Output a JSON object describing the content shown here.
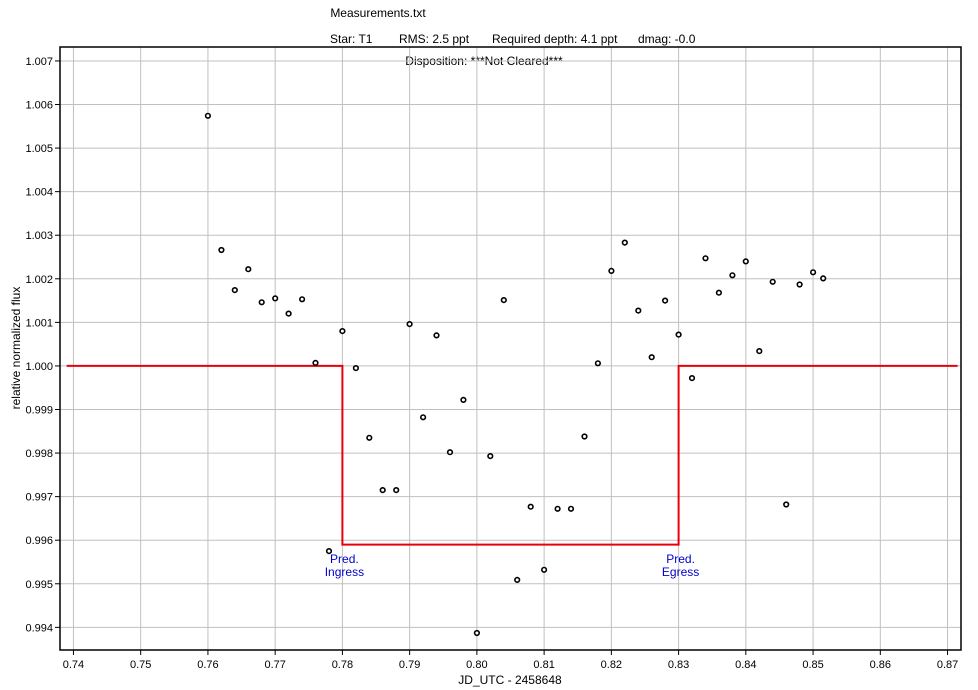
{
  "chart_data": {
    "type": "scatter",
    "title": "Measurements.txt",
    "subtitle": {
      "star": "Star: T1",
      "rms": "RMS: 2.5 ppt",
      "required_depth": "Required depth: 4.1 ppt",
      "dmag": "dmag: -0.0"
    },
    "disposition": "Disposition: ***Not Cleared***",
    "xlabel": "JD_UTC - 2458648",
    "ylabel": "relative normalized flux",
    "xlim": [
      0.738,
      0.872
    ],
    "ylim": [
      0.99348,
      1.00732
    ],
    "grid": true,
    "xticks": [
      0.74,
      0.75,
      0.76,
      0.77,
      0.78,
      0.79,
      0.8,
      0.81,
      0.82,
      0.83,
      0.84,
      0.85,
      0.86,
      0.87
    ],
    "xtick_labels": [
      "0.74",
      "0.75",
      "0.76",
      "0.77",
      "0.78",
      "0.79",
      "0.80",
      "0.81",
      "0.82",
      "0.83",
      "0.84",
      "0.85",
      "0.86",
      "0.87"
    ],
    "yticks": [
      0.994,
      0.995,
      0.996,
      0.997,
      0.998,
      0.999,
      1.0,
      1.001,
      1.002,
      1.003,
      1.004,
      1.005,
      1.006,
      1.007
    ],
    "ytick_labels": [
      "0.994",
      "0.995",
      "0.996",
      "0.997",
      "0.998",
      "0.999",
      "1.000",
      "1.001",
      "1.002",
      "1.003",
      "1.004",
      "1.005",
      "1.006",
      "1.007"
    ],
    "series": [
      {
        "type": "scatter",
        "color": "#000000",
        "points": [
          [
            0.76,
            1.00574
          ],
          [
            0.762,
            1.00266
          ],
          [
            0.764,
            1.00174
          ],
          [
            0.766,
            1.00222
          ],
          [
            0.768,
            1.00146
          ],
          [
            0.77,
            1.00155
          ],
          [
            0.772,
            1.0012
          ],
          [
            0.774,
            1.00153
          ],
          [
            0.776,
            1.00007
          ],
          [
            0.778,
            0.99575
          ],
          [
            0.78,
            1.0008
          ],
          [
            0.782,
            0.99995
          ],
          [
            0.784,
            0.99835
          ],
          [
            0.786,
            0.99715
          ],
          [
            0.788,
            0.99715
          ],
          [
            0.79,
            1.00096
          ],
          [
            0.792,
            0.99882
          ],
          [
            0.794,
            1.0007
          ],
          [
            0.796,
            0.99802
          ],
          [
            0.798,
            0.99922
          ],
          [
            0.8,
            0.99387
          ],
          [
            0.802,
            0.99793
          ],
          [
            0.804,
            1.00151
          ],
          [
            0.806,
            0.99509
          ],
          [
            0.808,
            0.99677
          ],
          [
            0.81,
            0.99532
          ],
          [
            0.812,
            0.99672
          ],
          [
            0.814,
            0.99672
          ],
          [
            0.816,
            0.99838
          ],
          [
            0.818,
            1.00006
          ],
          [
            0.82,
            1.00218
          ],
          [
            0.822,
            1.00283
          ],
          [
            0.824,
            1.00127
          ],
          [
            0.826,
            1.0002
          ],
          [
            0.828,
            1.0015
          ],
          [
            0.83,
            1.00072
          ],
          [
            0.832,
            0.99972
          ],
          [
            0.834,
            1.00247
          ],
          [
            0.836,
            1.00168
          ],
          [
            0.838,
            1.00208
          ],
          [
            0.84,
            1.0024
          ],
          [
            0.842,
            1.00034
          ],
          [
            0.844,
            1.00193
          ],
          [
            0.846,
            0.99682
          ],
          [
            0.848,
            1.00187
          ],
          [
            0.85,
            1.00215
          ],
          [
            0.8515,
            1.00201
          ]
        ]
      },
      {
        "type": "line",
        "color": "#e8000b",
        "points": [
          [
            0.739,
            1.0
          ],
          [
            0.78,
            1.0
          ],
          [
            0.78,
            0.9959
          ],
          [
            0.83,
            0.9959
          ],
          [
            0.83,
            1.0
          ],
          [
            0.8715,
            1.0
          ]
        ]
      }
    ],
    "annotations": [
      {
        "lines": [
          "Pred.",
          "Ingress"
        ],
        "x": 0.78,
        "y": 0.99548,
        "color": "#0000cc"
      },
      {
        "lines": [
          "Pred.",
          "Egress"
        ],
        "x": 0.83,
        "y": 0.99548,
        "color": "#0000cc"
      }
    ]
  }
}
